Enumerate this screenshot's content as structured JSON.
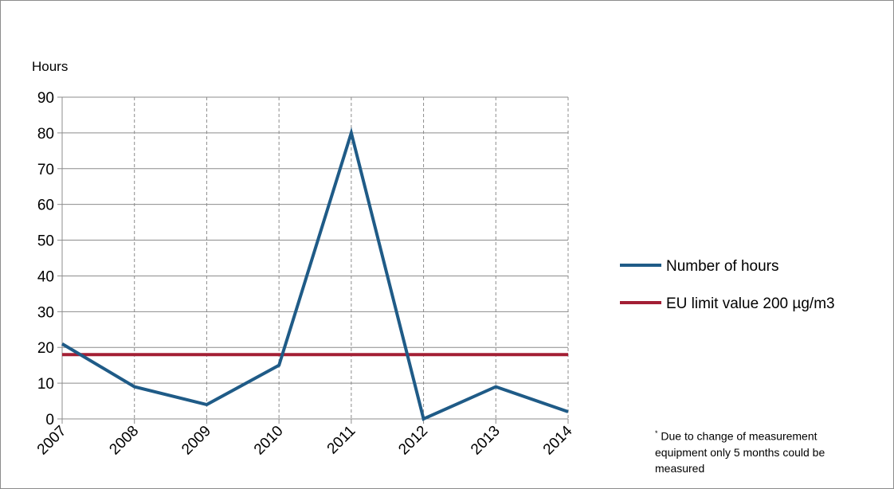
{
  "chart_data": {
    "type": "line",
    "ylabel": "Hours",
    "ylim": [
      0,
      90
    ],
    "yticks": [
      0,
      10,
      20,
      30,
      40,
      50,
      60,
      70,
      80,
      90
    ],
    "categories": [
      "2007",
      "2008",
      "2009",
      "2010",
      "2011",
      "2012",
      "2013",
      "2014"
    ],
    "series": [
      {
        "name": "Number of hours",
        "color": "#1f5b87",
        "values": [
          21,
          9,
          4,
          15,
          80,
          0,
          9,
          2
        ]
      },
      {
        "name": "EU limit value 200 µg/m3",
        "color": "#a31f34",
        "values": [
          18,
          18,
          18,
          18,
          18,
          18,
          18,
          18
        ]
      }
    ],
    "grid": {
      "horizontal": "solid",
      "vertical": "dashed"
    },
    "legend_position": "right",
    "footnote": {
      "marker": "*",
      "text": "Due to change of measurement equipment only 5 months could be measured"
    }
  }
}
